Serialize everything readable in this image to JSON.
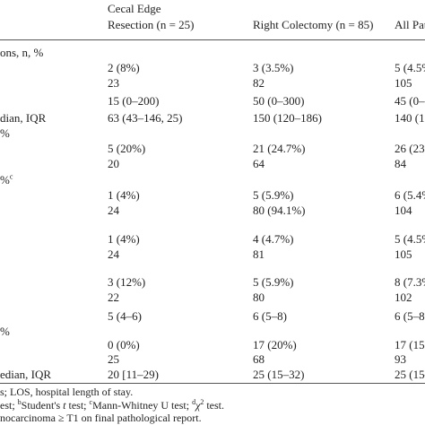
{
  "header": {
    "line1": [
      "Cecal Edge"
    ],
    "line2": [
      "Resection (n = 25)",
      "Right Colectomy (n = 85)",
      "All Pat"
    ]
  },
  "table": {
    "rows": [
      {
        "label": "ons, n, %"
      },
      {
        "cells": [
          "2 (8%)",
          "3 (3.5%)",
          "5 (4.5%"
        ]
      },
      {
        "cells": [
          "23",
          "82",
          "105"
        ]
      },
      {
        "cells": [
          "15 (0–200)",
          "50 (0–300)",
          "45 (0–"
        ]
      },
      {
        "label": "dian, IQR",
        "cells": [
          "63 (43–146, 25)",
          "150 (120–186)",
          "140 (1"
        ]
      },
      {
        "label": "%"
      },
      {
        "cells": [
          "5 (20%)",
          "21 (24.7%)",
          "26 (23"
        ]
      },
      {
        "cells": [
          "20",
          "64",
          "84"
        ]
      },
      {
        "label": "%",
        "label_sup": "c"
      },
      {
        "cells": [
          "1 (4%)",
          "5 (5.9%)",
          "6 (5.4%"
        ]
      },
      {
        "cells": [
          "24",
          "80 (94.1%)",
          "104"
        ]
      },
      {
        "cells": [
          "1 (4%)",
          "4 (4.7%)",
          "5 (4.5%"
        ]
      },
      {
        "cells": [
          "24",
          "81",
          "105"
        ]
      },
      {
        "cells": [
          "3 (12%)",
          "5 (5.9%)",
          "8 (7.3%"
        ]
      },
      {
        "cells": [
          "22",
          "80",
          "102"
        ]
      },
      {
        "cells": [
          "5 (4–6)",
          "6 (5–8)",
          "6 (5–8"
        ]
      },
      {
        "label": "%"
      },
      {
        "cells": [
          "0 (0%)",
          "17 (20%)",
          "17 (15"
        ]
      },
      {
        "cells": [
          "25",
          "68",
          "93"
        ]
      },
      {
        "label": "edian, IQR",
        "cells": [
          "20 [11–29)",
          "25 (15–32)",
          "25 (15–"
        ]
      }
    ]
  },
  "footnotes": [
    [
      {
        "t": "s; LOS, hospital length of stay."
      }
    ],
    [
      {
        "t": "est; "
      },
      {
        "t": "b",
        "s": "sup"
      },
      {
        "t": "Student's "
      },
      {
        "t": "t",
        "s": "i"
      },
      {
        "t": " test; "
      },
      {
        "t": "c",
        "s": "sup"
      },
      {
        "t": "Mann-Whitney U test; "
      },
      {
        "t": "d",
        "s": "sup"
      },
      {
        "t": "χ",
        "s": "i"
      },
      {
        "t": "2",
        "s": "sup"
      },
      {
        "t": " test."
      }
    ],
    [
      {
        "t": "nocarcinoma ≥ T1 on final pathological report."
      }
    ]
  ]
}
